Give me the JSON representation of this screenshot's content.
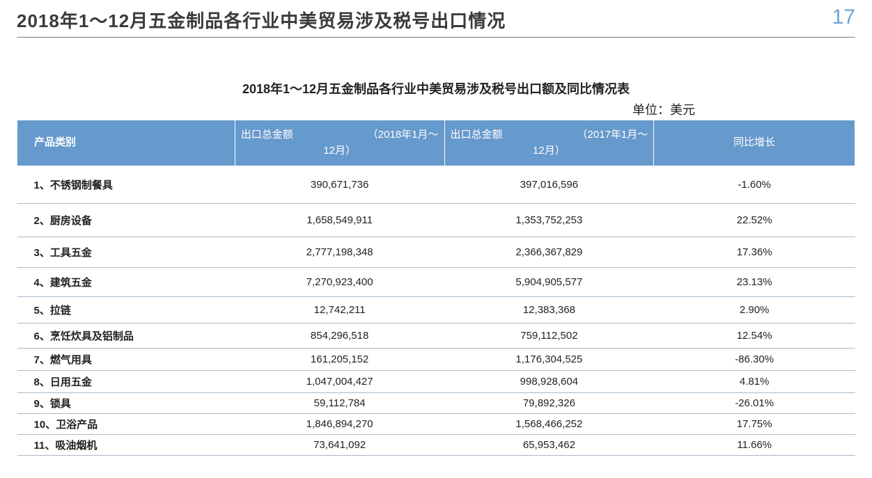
{
  "page": {
    "title": "2018年1～12月五金制品各行业中美贸易涉及税号出口情况",
    "number": "17"
  },
  "table": {
    "title": "2018年1～12月五金制品各行业中美贸易涉及税号出口额及同比情况表",
    "unit_label": "单位：美元",
    "header_bg": "#6699cc",
    "header_fg": "#ffffff",
    "row_border_color": "#a8b8c8",
    "columns": [
      {
        "key": "category",
        "label": "产品类别"
      },
      {
        "key": "amt2018",
        "label_a": "出口总金额",
        "label_b": "（2018年1月～",
        "label_c": "12月）"
      },
      {
        "key": "amt2017",
        "label_a": "出口总金额",
        "label_b": "（2017年1月～",
        "label_c": "12月）"
      },
      {
        "key": "yoy",
        "label": "同比增长"
      }
    ],
    "rows": [
      {
        "category": "1、不锈钢制餐具",
        "amt2018": "390,671,736",
        "amt2017": "397,016,596",
        "yoy": "-1.60%"
      },
      {
        "category": "2、厨房设备",
        "amt2018": "1,658,549,911",
        "amt2017": "1,353,752,253",
        "yoy": "22.52%"
      },
      {
        "category": "3、工具五金",
        "amt2018": "2,777,198,348",
        "amt2017": "2,366,367,829",
        "yoy": "17.36%"
      },
      {
        "category": "4、建筑五金",
        "amt2018": "7,270,923,400",
        "amt2017": "5,904,905,577",
        "yoy": "23.13%"
      },
      {
        "category": "5、拉链",
        "amt2018": "12,742,211",
        "amt2017": "12,383,368",
        "yoy": "2.90%"
      },
      {
        "category": "6、烹饪炊具及铝制品",
        "amt2018": "854,296,518",
        "amt2017": "759,112,502",
        "yoy": "12.54%"
      },
      {
        "category": "7、燃气用具",
        "amt2018": "161,205,152",
        "amt2017": "1,176,304,525",
        "yoy": "-86.30%"
      },
      {
        "category": "8、日用五金",
        "amt2018": "1,047,004,427",
        "amt2017": "998,928,604",
        "yoy": "4.81%"
      },
      {
        "category": "9、锁具",
        "amt2018": "59,112,784",
        "amt2017": "79,892,326",
        "yoy": "-26.01%"
      },
      {
        "category": "10、卫浴产品",
        "amt2018": "1,846,894,270",
        "amt2017": "1,568,466,252",
        "yoy": "17.75%"
      },
      {
        "category": "11、吸油烟机",
        "amt2018": "73,641,092",
        "amt2017": "65,953,462",
        "yoy": "11.66%"
      }
    ]
  }
}
